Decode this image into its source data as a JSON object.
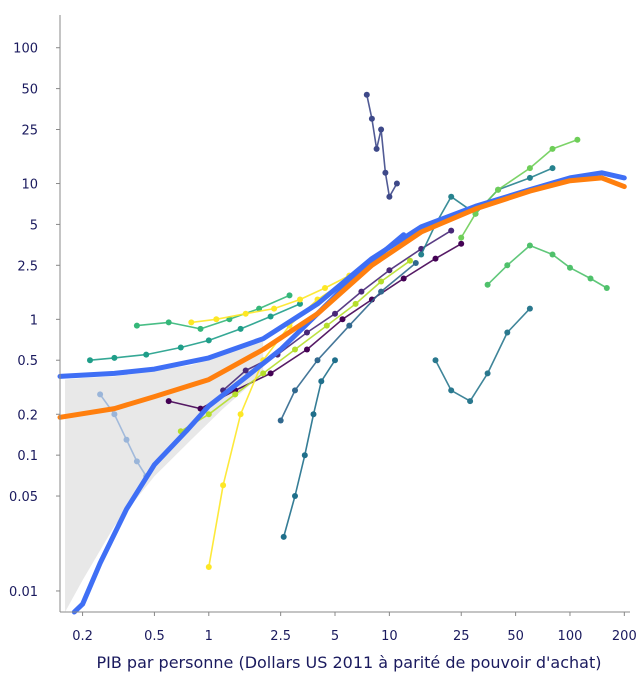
{
  "chart_data": {
    "type": "line",
    "title": "",
    "xlabel": "PIB par personne (Dollars US 2011 à parité de pouvoir d'achat)",
    "ylabel": "",
    "x_scale": "log",
    "y_scale": "log",
    "xlim": [
      0.15,
      215
    ],
    "ylim": [
      0.007,
      160
    ],
    "x_ticks": [
      {
        "value": 0.2,
        "label": "0.2"
      },
      {
        "value": 0.5,
        "label": "0.5"
      },
      {
        "value": 1,
        "label": "1"
      },
      {
        "value": 2.5,
        "label": "2.5"
      },
      {
        "value": 5,
        "label": "5"
      },
      {
        "value": 10,
        "label": "10"
      },
      {
        "value": 25,
        "label": "25"
      },
      {
        "value": 50,
        "label": "50"
      },
      {
        "value": 100,
        "label": "100"
      },
      {
        "value": 200,
        "label": "200"
      }
    ],
    "y_ticks": [
      {
        "value": 0.01,
        "label": "0.01"
      },
      {
        "value": 0.05,
        "label": "0.05"
      },
      {
        "value": 0.1,
        "label": "0.1"
      },
      {
        "value": 0.2,
        "label": "0.2"
      },
      {
        "value": 0.5,
        "label": "0.5"
      },
      {
        "value": 1,
        "label": "1"
      },
      {
        "value": 2.5,
        "label": "2.5"
      },
      {
        "value": 5,
        "label": "5"
      },
      {
        "value": 10,
        "label": "10"
      },
      {
        "value": 25,
        "label": "25"
      },
      {
        "value": 50,
        "label": "50"
      },
      {
        "value": 100,
        "label": "100"
      }
    ],
    "grid": false,
    "legend": "none",
    "shaded_band": {
      "color": "#e8e8e8",
      "x": [
        0.16,
        0.2,
        0.3,
        0.5,
        0.8,
        1.2,
        2
      ],
      "upper": [
        0.36,
        0.37,
        0.38,
        0.42,
        0.46,
        0.55,
        0.75
      ],
      "lower": [
        0.006,
        0.012,
        0.03,
        0.07,
        0.13,
        0.22,
        0.4
      ]
    },
    "series": [
      {
        "color": "#3f6ff5",
        "kind": "fit",
        "x": [
          0.15,
          0.3,
          0.5,
          1,
          2,
          4,
          8,
          15,
          30,
          60,
          100,
          150,
          200
        ],
        "y": [
          0.38,
          0.4,
          0.43,
          0.52,
          0.72,
          1.3,
          2.8,
          4.8,
          6.8,
          9,
          11,
          12,
          11
        ]
      },
      {
        "color": "#3f6ff5",
        "kind": "fit",
        "x": [
          0.18,
          0.2,
          0.25,
          0.35,
          0.5,
          0.75,
          1,
          1.5,
          2.5,
          4,
          7,
          12
        ],
        "y": [
          0.005,
          0.008,
          0.016,
          0.04,
          0.085,
          0.15,
          0.23,
          0.35,
          0.6,
          1.1,
          2.3,
          4.2
        ]
      },
      {
        "color": "#ff7f0e",
        "kind": "fit",
        "x": [
          0.15,
          0.3,
          0.5,
          1,
          2,
          4,
          8,
          15,
          30,
          60,
          100,
          150,
          200
        ],
        "y": [
          0.19,
          0.22,
          0.27,
          0.36,
          0.6,
          1.1,
          2.5,
          4.4,
          6.5,
          8.8,
          10.5,
          11,
          9.5
        ]
      },
      {
        "color": "#440154",
        "kind": "country",
        "x": [
          0.6,
          0.9,
          1.4,
          2.2,
          3.5,
          5.5,
          8,
          12,
          18,
          25
        ],
        "y": [
          0.25,
          0.22,
          0.3,
          0.4,
          0.6,
          1,
          1.4,
          2,
          2.8,
          3.6
        ]
      },
      {
        "color": "#482878",
        "kind": "country",
        "x": [
          1.2,
          1.6,
          2.4,
          3.5,
          5,
          7,
          10,
          15,
          22
        ],
        "y": [
          0.3,
          0.42,
          0.55,
          0.8,
          1.1,
          1.6,
          2.3,
          3.3,
          4.5
        ]
      },
      {
        "color": "#3e4989",
        "kind": "country",
        "x": [
          7.5,
          8,
          8.5,
          9,
          9.5,
          10,
          11
        ],
        "y": [
          45,
          30,
          18,
          25,
          12,
          8,
          10
        ]
      },
      {
        "color": "#31688e",
        "kind": "country",
        "x": [
          2.5,
          3,
          4,
          6,
          9,
          14
        ],
        "y": [
          0.18,
          0.3,
          0.5,
          0.9,
          1.6,
          2.6
        ]
      },
      {
        "color": "#26828e",
        "kind": "country",
        "x": [
          15,
          18,
          22,
          30,
          40,
          60,
          80
        ],
        "y": [
          3,
          5,
          8,
          6,
          9,
          11,
          13
        ]
      },
      {
        "color": "#1f9e89",
        "kind": "country",
        "x": [
          0.22,
          0.3,
          0.45,
          0.7,
          1,
          1.5,
          2.2,
          3.2
        ],
        "y": [
          0.5,
          0.52,
          0.55,
          0.62,
          0.7,
          0.85,
          1.05,
          1.3
        ]
      },
      {
        "color": "#35b779",
        "kind": "country",
        "x": [
          0.4,
          0.6,
          0.9,
          1.3,
          1.9,
          2.8
        ],
        "y": [
          0.9,
          0.95,
          0.85,
          1,
          1.2,
          1.5
        ]
      },
      {
        "color": "#6ece58",
        "kind": "country",
        "x": [
          25,
          30,
          40,
          60,
          80,
          110
        ],
        "y": [
          4,
          6,
          9,
          13,
          18,
          21
        ]
      },
      {
        "color": "#b5de2b",
        "kind": "country",
        "x": [
          0.7,
          1,
          1.4,
          2,
          3,
          4.5,
          6.5,
          9,
          13
        ],
        "y": [
          0.15,
          0.2,
          0.28,
          0.4,
          0.6,
          0.9,
          1.3,
          1.9,
          2.7
        ]
      },
      {
        "color": "#fde725",
        "kind": "country",
        "x": [
          1,
          1.2,
          1.5,
          2,
          2.8,
          4,
          6
        ],
        "y": [
          0.015,
          0.06,
          0.2,
          0.5,
          0.9,
          1.4,
          2
        ]
      },
      {
        "color": "#fde725",
        "kind": "country",
        "x": [
          0.8,
          1.1,
          1.6,
          2.3,
          3.2,
          4.4,
          6
        ],
        "y": [
          0.95,
          1,
          1.1,
          1.2,
          1.4,
          1.7,
          2.1
        ]
      },
      {
        "color": "#9ab5d9",
        "kind": "country",
        "x": [
          0.25,
          0.3,
          0.35,
          0.4,
          0.45
        ],
        "y": [
          0.28,
          0.2,
          0.13,
          0.09,
          0.07
        ]
      },
      {
        "color": "#1f6f8b",
        "kind": "country",
        "x": [
          2.6,
          3,
          3.4,
          3.8,
          4.2,
          5
        ],
        "y": [
          0.025,
          0.05,
          0.1,
          0.2,
          0.35,
          0.5
        ]
      },
      {
        "color": "#4fc16b",
        "kind": "country",
        "x": [
          35,
          45,
          60,
          80,
          100,
          130,
          160
        ],
        "y": [
          1.8,
          2.5,
          3.5,
          3,
          2.4,
          2,
          1.7
        ]
      },
      {
        "color": "#2a788e",
        "kind": "country",
        "x": [
          18,
          22,
          28,
          35,
          45,
          60
        ],
        "y": [
          0.5,
          0.3,
          0.25,
          0.4,
          0.8,
          1.2
        ]
      }
    ]
  }
}
